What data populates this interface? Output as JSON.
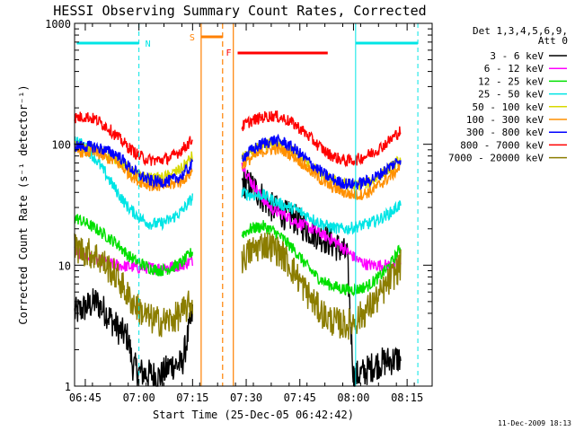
{
  "chart_data": {
    "type": "line",
    "title": "HESSI Observing Summary Count Rates, Corrected",
    "xlabel": "Start Time (25-Dec-05 06:42:42)",
    "ylabel": "Corrected Count Rate (s⁻¹ detector⁻¹)",
    "yscale": "log",
    "ylim": [
      1,
      1000
    ],
    "xlim": [
      "06:42",
      "08:22"
    ],
    "x_ticks": [
      "06:45",
      "07:00",
      "07:15",
      "07:30",
      "07:45",
      "08:00",
      "08:15"
    ],
    "y_ticks": [
      "1",
      "10",
      "100",
      "1000"
    ],
    "legend_header": [
      "Det 1,3,4,5,6,9,",
      "Att 0"
    ],
    "legend_position": "right",
    "timestamp": "11-Dec-2009 18:13",
    "markers": [
      {
        "label": "N",
        "kind": "night",
        "color": "#00e5e5"
      },
      {
        "label": "S",
        "kind": "saa",
        "color": "#ff8000"
      },
      {
        "label": "F",
        "kind": "flare",
        "color": "#ff0000"
      }
    ],
    "series": [
      {
        "name": "3 - 6 keV",
        "color": "#000000",
        "seg1": [
          [
            6.7,
            4
          ],
          [
            6.8,
            5
          ],
          [
            6.85,
            4
          ],
          [
            6.9,
            3
          ],
          [
            6.95,
            2.5
          ],
          [
            6.97,
            1.5
          ],
          [
            7.0,
            1.3
          ],
          [
            7.1,
            1.2
          ],
          [
            7.15,
            1.5
          ],
          [
            7.2,
            1.5
          ],
          [
            7.25,
            4
          ]
        ],
        "seg2": [
          [
            7.48,
            48
          ],
          [
            7.52,
            46
          ],
          [
            7.58,
            36
          ],
          [
            7.62,
            30
          ],
          [
            7.68,
            26
          ],
          [
            7.73,
            24
          ],
          [
            7.78,
            20
          ],
          [
            7.83,
            18
          ],
          [
            7.88,
            16
          ],
          [
            7.93,
            14
          ],
          [
            7.97,
            12
          ],
          [
            8.0,
            1.2
          ],
          [
            8.05,
            1.3
          ],
          [
            8.1,
            1.5
          ],
          [
            8.15,
            1.6
          ],
          [
            8.22,
            1.7
          ]
        ]
      },
      {
        "name": "6 - 12 keV",
        "color": "#ff00ff",
        "seg1": [
          [
            6.7,
            13
          ],
          [
            6.8,
            11
          ],
          [
            6.9,
            10
          ],
          [
            7.0,
            9.5
          ],
          [
            7.05,
            9.5
          ],
          [
            7.1,
            9.5
          ],
          [
            7.15,
            9.7
          ],
          [
            7.2,
            10
          ],
          [
            7.25,
            11
          ]
        ],
        "seg2": [
          [
            7.48,
            70
          ],
          [
            7.52,
            50
          ],
          [
            7.58,
            35
          ],
          [
            7.62,
            29
          ],
          [
            7.68,
            26
          ],
          [
            7.73,
            23
          ],
          [
            7.78,
            21
          ],
          [
            7.83,
            19
          ],
          [
            7.88,
            17
          ],
          [
            7.93,
            15
          ],
          [
            7.97,
            13
          ],
          [
            8.02,
            11
          ],
          [
            8.07,
            10
          ],
          [
            8.12,
            10
          ],
          [
            8.17,
            10
          ],
          [
            8.22,
            10.5
          ]
        ]
      },
      {
        "name": "12 - 25 keV",
        "color": "#00e000",
        "seg1": [
          [
            6.7,
            25
          ],
          [
            6.8,
            20
          ],
          [
            6.9,
            15
          ],
          [
            6.95,
            12
          ],
          [
            7.0,
            10.5
          ],
          [
            7.05,
            9.5
          ],
          [
            7.1,
            9
          ],
          [
            7.15,
            9.5
          ],
          [
            7.2,
            10.5
          ],
          [
            7.25,
            13
          ]
        ],
        "seg2": [
          [
            7.48,
            18
          ],
          [
            7.52,
            20
          ],
          [
            7.58,
            21
          ],
          [
            7.63,
            19
          ],
          [
            7.68,
            16
          ],
          [
            7.73,
            13
          ],
          [
            7.78,
            10
          ],
          [
            7.83,
            8
          ],
          [
            7.88,
            7
          ],
          [
            7.93,
            6.5
          ],
          [
            7.97,
            6.3
          ],
          [
            8.02,
            6.3
          ],
          [
            8.07,
            6.8
          ],
          [
            8.12,
            8
          ],
          [
            8.17,
            10
          ],
          [
            8.22,
            14
          ]
        ]
      },
      {
        "name": "25 - 50 keV",
        "color": "#00e5e5",
        "seg1": [
          [
            6.7,
            110
          ],
          [
            6.75,
            95
          ],
          [
            6.8,
            75
          ],
          [
            6.85,
            55
          ],
          [
            6.9,
            40
          ],
          [
            6.95,
            30
          ],
          [
            7.0,
            25
          ],
          [
            7.05,
            22
          ],
          [
            7.1,
            22
          ],
          [
            7.15,
            24
          ],
          [
            7.2,
            28
          ],
          [
            7.25,
            36
          ]
        ],
        "seg2": [
          [
            7.48,
            40
          ],
          [
            7.52,
            38
          ],
          [
            7.58,
            38
          ],
          [
            7.63,
            34
          ],
          [
            7.68,
            31
          ],
          [
            7.73,
            29
          ],
          [
            7.78,
            26
          ],
          [
            7.83,
            23
          ],
          [
            7.88,
            21
          ],
          [
            7.93,
            20
          ],
          [
            7.97,
            20
          ],
          [
            8.02,
            21
          ],
          [
            8.07,
            22
          ],
          [
            8.12,
            24
          ],
          [
            8.17,
            27
          ],
          [
            8.22,
            32
          ]
        ]
      },
      {
        "name": "50 - 100 keV",
        "color": "#d8d800",
        "seg1": [
          [
            6.7,
            95
          ],
          [
            6.8,
            90
          ],
          [
            6.9,
            75
          ],
          [
            6.95,
            62
          ],
          [
            7.0,
            55
          ],
          [
            7.05,
            52
          ],
          [
            7.1,
            52
          ],
          [
            7.15,
            56
          ],
          [
            7.2,
            63
          ],
          [
            7.25,
            80
          ]
        ],
        "seg2": [
          [
            7.48,
            75
          ],
          [
            7.52,
            85
          ],
          [
            7.58,
            98
          ],
          [
            7.63,
            103
          ],
          [
            7.68,
            97
          ],
          [
            7.73,
            85
          ],
          [
            7.78,
            70
          ],
          [
            7.83,
            60
          ],
          [
            7.88,
            52
          ],
          [
            7.93,
            48
          ],
          [
            7.97,
            46
          ],
          [
            8.02,
            46
          ],
          [
            8.07,
            48
          ],
          [
            8.12,
            55
          ],
          [
            8.17,
            63
          ],
          [
            8.22,
            75
          ]
        ]
      },
      {
        "name": "100 - 300 keV",
        "color": "#ff9000",
        "seg1": [
          [
            6.7,
            88
          ],
          [
            6.8,
            85
          ],
          [
            6.9,
            70
          ],
          [
            6.95,
            58
          ],
          [
            7.0,
            50
          ],
          [
            7.05,
            46
          ],
          [
            7.1,
            45
          ],
          [
            7.15,
            46
          ],
          [
            7.2,
            50
          ],
          [
            7.25,
            60
          ]
        ],
        "seg2": [
          [
            7.48,
            68
          ],
          [
            7.52,
            76
          ],
          [
            7.58,
            88
          ],
          [
            7.63,
            92
          ],
          [
            7.68,
            88
          ],
          [
            7.73,
            78
          ],
          [
            7.78,
            65
          ],
          [
            7.83,
            54
          ],
          [
            7.88,
            46
          ],
          [
            7.93,
            42
          ],
          [
            7.97,
            39
          ],
          [
            8.02,
            38
          ],
          [
            8.07,
            40
          ],
          [
            8.12,
            46
          ],
          [
            8.17,
            54
          ],
          [
            8.22,
            66
          ]
        ]
      },
      {
        "name": "300 - 800 keV",
        "color": "#0000ff",
        "seg1": [
          [
            6.7,
            97
          ],
          [
            6.8,
            95
          ],
          [
            6.9,
            82
          ],
          [
            6.95,
            66
          ],
          [
            7.0,
            56
          ],
          [
            7.05,
            50
          ],
          [
            7.1,
            49
          ],
          [
            7.15,
            50
          ],
          [
            7.2,
            55
          ],
          [
            7.25,
            68
          ]
        ],
        "seg2": [
          [
            7.48,
            78
          ],
          [
            7.52,
            88
          ],
          [
            7.58,
            102
          ],
          [
            7.63,
            108
          ],
          [
            7.68,
            103
          ],
          [
            7.73,
            90
          ],
          [
            7.78,
            75
          ],
          [
            7.83,
            63
          ],
          [
            7.88,
            54
          ],
          [
            7.93,
            49
          ],
          [
            7.97,
            47
          ],
          [
            8.02,
            47
          ],
          [
            8.07,
            50
          ],
          [
            8.12,
            56
          ],
          [
            8.17,
            65
          ],
          [
            8.22,
            76
          ]
        ]
      },
      {
        "name": "800 - 7000 keV",
        "color": "#ff0000",
        "seg1": [
          [
            6.7,
            165
          ],
          [
            6.75,
            170
          ],
          [
            6.8,
            160
          ],
          [
            6.85,
            140
          ],
          [
            6.9,
            115
          ],
          [
            6.95,
            95
          ],
          [
            7.0,
            80
          ],
          [
            7.05,
            74
          ],
          [
            7.1,
            74
          ],
          [
            7.15,
            78
          ],
          [
            7.2,
            90
          ],
          [
            7.25,
            110
          ]
        ],
        "seg2": [
          [
            7.48,
            140
          ],
          [
            7.52,
            155
          ],
          [
            7.58,
            168
          ],
          [
            7.63,
            172
          ],
          [
            7.68,
            162
          ],
          [
            7.73,
            145
          ],
          [
            7.78,
            122
          ],
          [
            7.83,
            100
          ],
          [
            7.88,
            84
          ],
          [
            7.93,
            76
          ],
          [
            7.97,
            73
          ],
          [
            8.02,
            75
          ],
          [
            8.07,
            82
          ],
          [
            8.12,
            92
          ],
          [
            8.17,
            108
          ],
          [
            8.22,
            130
          ]
        ]
      },
      {
        "name": "7000 - 20000 keV",
        "color": "#8b7d00",
        "seg1": [
          [
            6.7,
            14
          ],
          [
            6.8,
            12
          ],
          [
            6.9,
            8
          ],
          [
            6.95,
            5.5
          ],
          [
            7.0,
            4.3
          ],
          [
            7.05,
            3.6
          ],
          [
            7.1,
            3.4
          ],
          [
            7.15,
            3.5
          ],
          [
            7.2,
            4
          ],
          [
            7.25,
            5
          ]
        ],
        "seg2": [
          [
            7.48,
            11
          ],
          [
            7.52,
            13
          ],
          [
            7.58,
            15
          ],
          [
            7.63,
            14
          ],
          [
            7.68,
            11.5
          ],
          [
            7.73,
            8.5
          ],
          [
            7.78,
            6
          ],
          [
            7.83,
            4.5
          ],
          [
            7.88,
            3.6
          ],
          [
            7.93,
            3.3
          ],
          [
            7.97,
            3.2
          ],
          [
            8.02,
            3.6
          ],
          [
            8.07,
            4.4
          ],
          [
            8.12,
            5.5
          ],
          [
            8.17,
            7.5
          ],
          [
            8.22,
            10
          ]
        ]
      }
    ]
  }
}
